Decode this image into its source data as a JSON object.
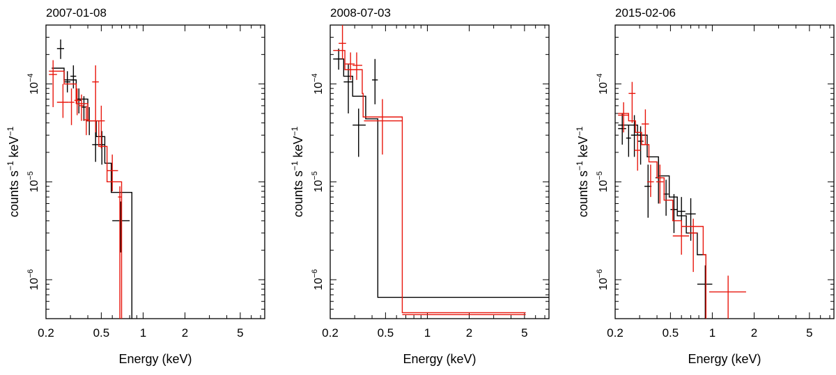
{
  "colors": {
    "series_a": "#000000",
    "series_b": "#e8160c",
    "axis": "#000000"
  },
  "chart_data": [
    {
      "type": "step",
      "title": "2007-01-08",
      "xlabel": "Energy (keV)",
      "ylabel_main": "counts s",
      "ylabel_exp1": "−1",
      "ylabel_mid": " keV",
      "ylabel_exp2": "−1",
      "xscale": "log",
      "yscale": "log",
      "xlim": [
        0.2,
        7.5
      ],
      "ylim": [
        4e-07,
        0.0004
      ],
      "xticks": [
        0.2,
        0.5,
        1,
        2,
        5
      ],
      "xtick_labels": [
        "0.2",
        "0.5",
        "1",
        "2",
        "5"
      ],
      "yticks": [
        1e-06,
        1e-05,
        0.0001
      ],
      "ytick_labels": [
        {
          "base": "10",
          "exp": "−6"
        },
        {
          "base": "10",
          "exp": "−5"
        },
        {
          "base": "10",
          "exp": "−4"
        }
      ],
      "series": [
        {
          "name": "black",
          "data": [
            {
              "x": 0.255,
              "xlo": 0.24,
              "xhi": 0.27,
              "y": 0.00023,
              "ylo": 0.00018,
              "yhi": 0.000285
            },
            {
              "x": 0.285,
              "xlo": 0.27,
              "xhi": 0.3,
              "y": 0.000105,
              "ylo": 8.2e-05,
              "yhi": 0.000135
            },
            {
              "x": 0.315,
              "xlo": 0.3,
              "xhi": 0.33,
              "y": 0.00012,
              "ylo": 9e-05,
              "yhi": 0.000155
            },
            {
              "x": 0.345,
              "xlo": 0.33,
              "xhi": 0.36,
              "y": 6.8e-05,
              "ylo": 5e-05,
              "yhi": 9e-05
            },
            {
              "x": 0.375,
              "xlo": 0.36,
              "xhi": 0.39,
              "y": 5.8e-05,
              "ylo": 4.2e-05,
              "yhi": 7.5e-05
            },
            {
              "x": 0.41,
              "xlo": 0.39,
              "xhi": 0.43,
              "y": 4.2e-05,
              "ylo": 3e-05,
              "yhi": 5.8e-05
            },
            {
              "x": 0.455,
              "xlo": 0.43,
              "xhi": 0.48,
              "y": 2.4e-05,
              "ylo": 1.6e-05,
              "yhi": 3.4e-05
            },
            {
              "x": 0.505,
              "xlo": 0.48,
              "xhi": 0.53,
              "y": 2.4e-05,
              "ylo": 1.5e-05,
              "yhi": 3.3e-05
            },
            {
              "x": 0.69,
              "xlo": 0.6,
              "xhi": 0.8,
              "y": 4e-06,
              "ylo": 1.9e-06,
              "yhi": 6.3e-06
            }
          ],
          "model": [
            [
              0.22,
              0.000145
            ],
            [
              0.27,
              0.00011
            ],
            [
              0.33,
              7e-05
            ],
            [
              0.4,
              4.2e-05
            ],
            [
              0.46,
              2.9e-05
            ],
            [
              0.53,
              1.55e-05
            ],
            [
              0.59,
              7.8e-06
            ],
            [
              0.83,
              7.8e-06
            ],
            [
              0.83,
              4e-07
            ]
          ]
        },
        {
          "name": "red",
          "data": [
            {
              "x": 0.225,
              "xlo": 0.21,
              "xhi": 0.24,
              "y": 0.000125,
              "ylo": 5.8e-05,
              "yhi": 0.000175
            },
            {
              "x": 0.265,
              "xlo": 0.24,
              "xhi": 0.29,
              "y": 6.5e-05,
              "ylo": 4.5e-05,
              "yhi": 0.0001
            },
            {
              "x": 0.305,
              "xlo": 0.29,
              "xhi": 0.32,
              "y": 6.5e-05,
              "ylo": 3.8e-05,
              "yhi": 9e-05
            },
            {
              "x": 0.335,
              "xlo": 0.32,
              "xhi": 0.35,
              "y": 6.8e-05,
              "ylo": 4.8e-05,
              "yhi": 9e-05
            },
            {
              "x": 0.36,
              "xlo": 0.345,
              "xhi": 0.375,
              "y": 6e-05,
              "ylo": 4.2e-05,
              "yhi": 7.8e-05
            },
            {
              "x": 0.39,
              "xlo": 0.37,
              "xhi": 0.41,
              "y": 4.3e-05,
              "ylo": 3e-05,
              "yhi": 6e-05
            },
            {
              "x": 0.455,
              "xlo": 0.43,
              "xhi": 0.48,
              "y": 0.000105,
              "ylo": 3.2e-05,
              "yhi": 0.000155
            },
            {
              "x": 0.5,
              "xlo": 0.47,
              "xhi": 0.53,
              "y": 4.2e-05,
              "ylo": 2.2e-05,
              "yhi": 6e-05
            },
            {
              "x": 0.6,
              "xlo": 0.55,
              "xhi": 0.66,
              "y": 1.3e-05,
              "ylo": 8e-06,
              "yhi": 1.9e-05
            },
            {
              "x": 0.68,
              "xlo": 0.66,
              "xhi": 0.7,
              "y": 7e-06,
              "ylo": 4e-07,
              "yhi": 9e-06
            }
          ],
          "model": [
            [
              0.21,
              0.000135
            ],
            [
              0.27,
              0.0001
            ],
            [
              0.33,
              6.3e-05
            ],
            [
              0.4,
              4.2e-05
            ],
            [
              0.48,
              2.3e-05
            ],
            [
              0.55,
              1e-05
            ],
            [
              0.7,
              1e-05
            ],
            [
              0.7,
              4e-07
            ]
          ]
        }
      ]
    },
    {
      "type": "step",
      "title": "2008-07-03",
      "xlabel": "Energy (keV)",
      "ylabel_main": "counts s",
      "ylabel_exp1": "−1",
      "ylabel_mid": " keV",
      "ylabel_exp2": "−1",
      "xscale": "log",
      "yscale": "log",
      "xlim": [
        0.2,
        7.5
      ],
      "ylim": [
        4e-07,
        0.0004
      ],
      "xticks": [
        0.2,
        0.5,
        1,
        2,
        5
      ],
      "xtick_labels": [
        "0.2",
        "0.5",
        "1",
        "2",
        "5"
      ],
      "yticks": [
        1e-06,
        1e-05,
        0.0001
      ],
      "ytick_labels": [
        {
          "base": "10",
          "exp": "−6"
        },
        {
          "base": "10",
          "exp": "−5"
        },
        {
          "base": "10",
          "exp": "−4"
        }
      ],
      "series": [
        {
          "name": "black",
          "data": [
            {
              "x": 0.23,
              "xlo": 0.21,
              "xhi": 0.25,
              "y": 0.00018,
              "ylo": 0.00014,
              "yhi": 0.00023
            },
            {
              "x": 0.27,
              "xlo": 0.25,
              "xhi": 0.29,
              "y": 0.000105,
              "ylo": 5e-05,
              "yhi": 0.00016
            },
            {
              "x": 0.32,
              "xlo": 0.29,
              "xhi": 0.36,
              "y": 3.8e-05,
              "ylo": 1.8e-05,
              "yhi": 5.6e-05
            },
            {
              "x": 0.42,
              "xlo": 0.4,
              "xhi": 0.44,
              "y": 0.00011,
              "ylo": 6.2e-05,
              "yhi": 0.00018
            }
          ],
          "model": [
            [
              0.22,
              0.00018
            ],
            [
              0.25,
              0.00012
            ],
            [
              0.29,
              7.5e-05
            ],
            [
              0.36,
              4.4e-05
            ],
            [
              0.44,
              4.4e-05
            ],
            [
              0.44,
              6.6e-07
            ],
            [
              7.5,
              6.6e-07
            ]
          ]
        },
        {
          "name": "red",
          "data": [
            {
              "x": 0.245,
              "xlo": 0.23,
              "xhi": 0.26,
              "y": 0.00026,
              "ylo": 0.00018,
              "yhi": 0.0004
            },
            {
              "x": 0.28,
              "xlo": 0.255,
              "xhi": 0.3,
              "y": 0.00016,
              "ylo": 0.00011,
              "yhi": 0.00021
            },
            {
              "x": 0.31,
              "xlo": 0.29,
              "xhi": 0.34,
              "y": 0.000155,
              "ylo": 0.00011,
              "yhi": 0.00021
            },
            {
              "x": 0.475,
              "xlo": 0.35,
              "xhi": 0.66,
              "y": 4.2e-05,
              "ylo": 1.9e-05,
              "yhi": 7e-05
            },
            {
              "x": 2.5,
              "xlo": 0.66,
              "xhi": 5.1,
              "y": 4.4e-07,
              "ylo": 4.4e-07,
              "yhi": 4.4e-07
            }
          ],
          "model": [
            [
              0.21,
              0.00022
            ],
            [
              0.255,
              0.00014
            ],
            [
              0.34,
              8e-05
            ],
            [
              0.345,
              4.6e-05
            ],
            [
              0.66,
              4.6e-05
            ],
            [
              0.66,
              4.6e-07
            ],
            [
              5.1,
              4.6e-07
            ]
          ]
        }
      ]
    },
    {
      "type": "step",
      "title": "2015-02-06",
      "xlabel": "Energy (keV)",
      "ylabel_main": "counts s",
      "ylabel_exp1": "−1",
      "ylabel_mid": " keV",
      "ylabel_exp2": "−1",
      "xscale": "log",
      "yscale": "log",
      "xlim": [
        0.2,
        7.5
      ],
      "ylim": [
        4e-07,
        0.0004
      ],
      "xticks": [
        0.2,
        0.5,
        1,
        2,
        5
      ],
      "xtick_labels": [
        "0.2",
        "0.5",
        "1",
        "2",
        "5"
      ],
      "yticks": [
        1e-06,
        1e-05,
        0.0001
      ],
      "ytick_labels": [
        {
          "base": "10",
          "exp": "−6"
        },
        {
          "base": "10",
          "exp": "−5"
        },
        {
          "base": "10",
          "exp": "−4"
        }
      ],
      "series": [
        {
          "name": "black",
          "data": [
            {
              "x": 0.225,
              "xlo": 0.21,
              "xhi": 0.24,
              "y": 3.5e-05,
              "ylo": 2.4e-05,
              "yhi": 5e-05
            },
            {
              "x": 0.25,
              "xlo": 0.24,
              "xhi": 0.26,
              "y": 2.8e-05,
              "ylo": 1.8e-05,
              "yhi": 3.8e-05
            },
            {
              "x": 0.275,
              "xlo": 0.26,
              "xhi": 0.29,
              "y": 3e-05,
              "ylo": 1.8e-05,
              "yhi": 4.8e-05
            },
            {
              "x": 0.305,
              "xlo": 0.29,
              "xhi": 0.32,
              "y": 2.6e-05,
              "ylo": 1.5e-05,
              "yhi": 3.7e-05
            },
            {
              "x": 0.345,
              "xlo": 0.325,
              "xhi": 0.365,
              "y": 9e-06,
              "ylo": 4.3e-06,
              "yhi": 1.5e-05
            },
            {
              "x": 0.41,
              "xlo": 0.39,
              "xhi": 0.43,
              "y": 1.1e-05,
              "ylo": 6e-06,
              "yhi": 1.7e-05
            },
            {
              "x": 0.465,
              "xlo": 0.445,
              "xhi": 0.485,
              "y": 7.5e-06,
              "ylo": 4.5e-06,
              "yhi": 1.05e-05
            },
            {
              "x": 0.53,
              "xlo": 0.5,
              "xhi": 0.56,
              "y": 5.2e-06,
              "ylo": 3e-06,
              "yhi": 7.5e-06
            },
            {
              "x": 0.6,
              "xlo": 0.56,
              "xhi": 0.64,
              "y": 5e-06,
              "ylo": 3e-06,
              "yhi": 7e-06
            },
            {
              "x": 0.7,
              "xlo": 0.64,
              "xhi": 0.76,
              "y": 4.7e-06,
              "ylo": 2.5e-06,
              "yhi": 6.8e-06
            },
            {
              "x": 0.89,
              "xlo": 0.78,
              "xhi": 1.0,
              "y": 9e-07,
              "ylo": 4e-07,
              "yhi": 1.4e-06
            }
          ],
          "model": [
            [
              0.21,
              3.8e-05
            ],
            [
              0.29,
              3e-05
            ],
            [
              0.34,
              1.8e-05
            ],
            [
              0.41,
              1.15e-05
            ],
            [
              0.49,
              7e-06
            ],
            [
              0.56,
              4.5e-06
            ],
            [
              0.65,
              3e-06
            ],
            [
              0.78,
              1.8e-06
            ],
            [
              0.9,
              1.1e-06
            ],
            [
              0.9,
              4e-07
            ]
          ]
        },
        {
          "name": "red",
          "data": [
            {
              "x": 0.23,
              "xlo": 0.21,
              "xhi": 0.25,
              "y": 4.8e-05,
              "ylo": 3.2e-05,
              "yhi": 6.5e-05
            },
            {
              "x": 0.265,
              "xlo": 0.25,
              "xhi": 0.28,
              "y": 8e-05,
              "ylo": 4e-05,
              "yhi": 0.000105
            },
            {
              "x": 0.29,
              "xlo": 0.275,
              "xhi": 0.305,
              "y": 2.1e-05,
              "ylo": 1.3e-05,
              "yhi": 3e-05
            },
            {
              "x": 0.33,
              "xlo": 0.31,
              "xhi": 0.35,
              "y": 3.9e-05,
              "ylo": 2.4e-05,
              "yhi": 5.5e-05
            },
            {
              "x": 0.36,
              "xlo": 0.34,
              "xhi": 0.38,
              "y": 1e-05,
              "ylo": 7e-06,
              "yhi": 1.5e-05
            },
            {
              "x": 0.42,
              "xlo": 0.395,
              "xhi": 0.445,
              "y": 1e-05,
              "ylo": 6e-06,
              "yhi": 1.5e-05
            },
            {
              "x": 0.6,
              "xlo": 0.52,
              "xhi": 0.68,
              "y": 2.8e-06,
              "ylo": 1.8e-06,
              "yhi": 3.8e-06
            },
            {
              "x": 0.73,
              "xlo": 0.68,
              "xhi": 0.78,
              "y": 3e-06,
              "ylo": 1.2e-06,
              "yhi": 4.2e-06
            },
            {
              "x": 1.3,
              "xlo": 0.95,
              "xhi": 1.75,
              "y": 7.5e-07,
              "ylo": 4e-07,
              "yhi": 1.1e-06
            }
          ],
          "model": [
            [
              0.21,
              5e-05
            ],
            [
              0.25,
              4.2e-05
            ],
            [
              0.28,
              3.2e-05
            ],
            [
              0.31,
              2.4e-05
            ],
            [
              0.35,
              1.6e-05
            ],
            [
              0.4,
              1.6e-05
            ],
            [
              0.4,
              1.1e-05
            ],
            [
              0.45,
              1.1e-05
            ],
            [
              0.45,
              6.5e-06
            ],
            [
              0.52,
              6.5e-06
            ],
            [
              0.52,
              4e-06
            ],
            [
              0.6,
              4e-06
            ],
            [
              0.6,
              3.5e-06
            ],
            [
              0.86,
              3.5e-06
            ],
            [
              0.86,
              1.8e-06
            ],
            [
              0.9,
              1.8e-06
            ],
            [
              0.9,
              4e-07
            ]
          ]
        }
      ]
    }
  ]
}
